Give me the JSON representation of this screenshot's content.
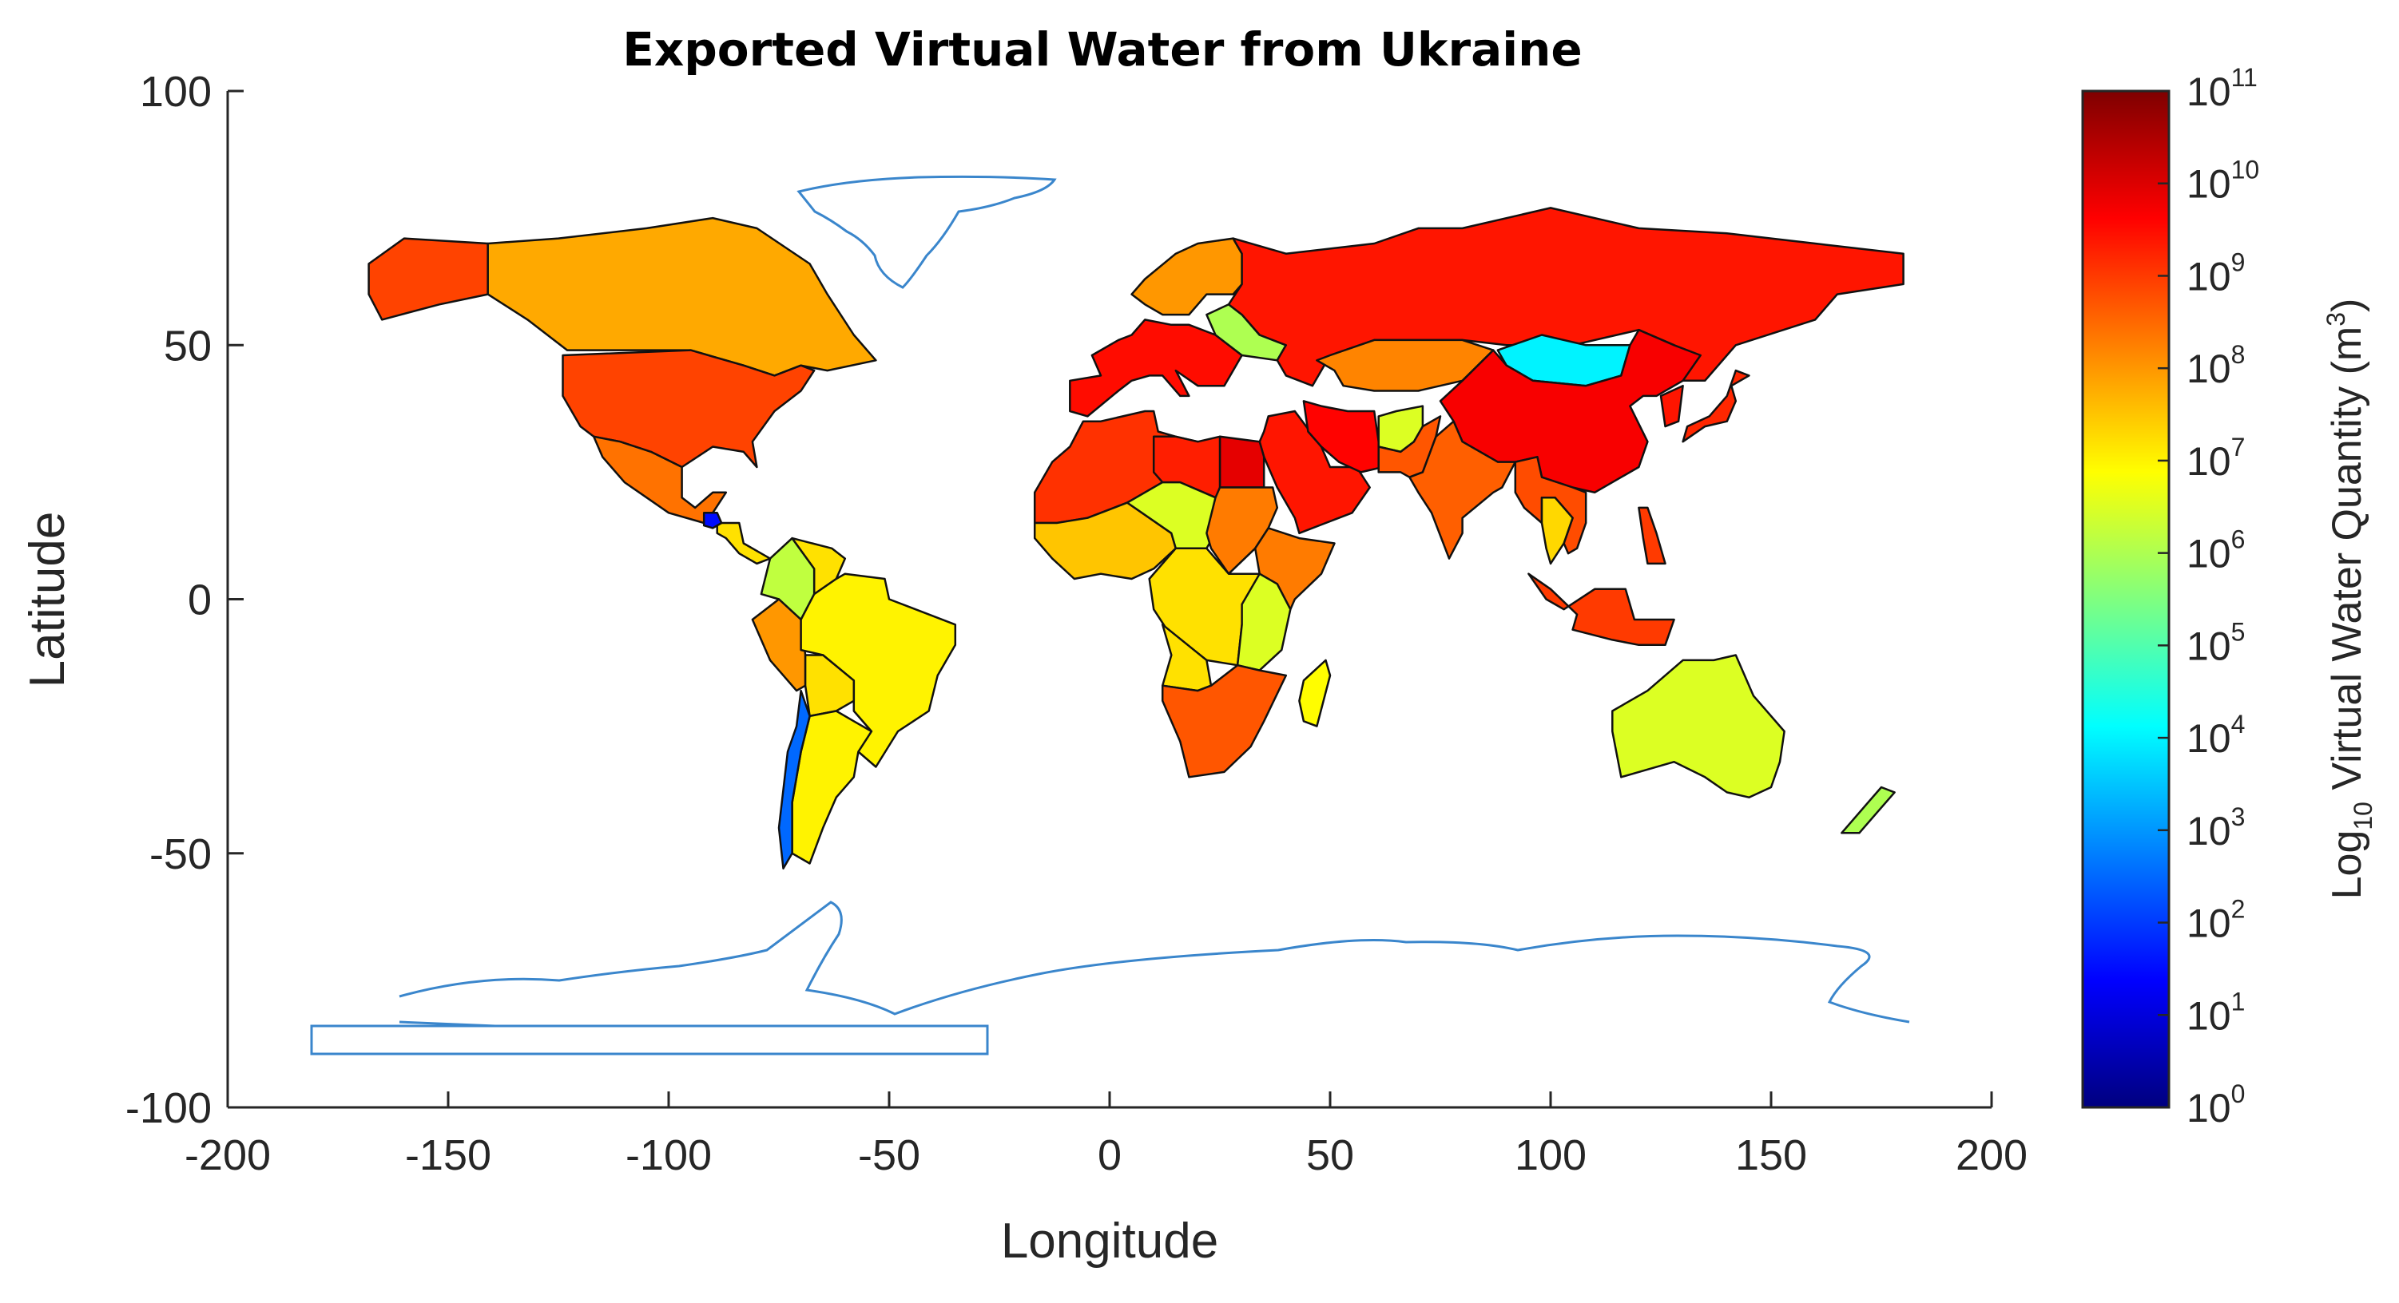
{
  "chart_data": {
    "type": "choropleth",
    "title": "Exported Virtual Water from Ukraine",
    "xlabel": "Longitude",
    "ylabel": "Latitude",
    "xlim": [
      -200,
      200
    ],
    "ylim": [
      -100,
      100
    ],
    "xticks": [
      "-200",
      "-150",
      "-100",
      "-50",
      "0",
      "50",
      "100",
      "150",
      "200"
    ],
    "yticks": [
      "100",
      "50",
      "0",
      "-50",
      "-100"
    ],
    "grid": false,
    "colorbar": {
      "label_prefix": "Log",
      "label_sub": "10",
      "label_mid": " Virtual Water Quantity (m",
      "label_sup": "3",
      "label_end": ")",
      "colormap": "jet",
      "scale": "log",
      "range_exponent": [
        0,
        11
      ],
      "ticks": [
        {
          "base": "10",
          "exp": "11"
        },
        {
          "base": "10",
          "exp": "10"
        },
        {
          "base": "10",
          "exp": "9"
        },
        {
          "base": "10",
          "exp": "8"
        },
        {
          "base": "10",
          "exp": "7"
        },
        {
          "base": "10",
          "exp": "6"
        },
        {
          "base": "10",
          "exp": "5"
        },
        {
          "base": "10",
          "exp": "4"
        },
        {
          "base": "10",
          "exp": "3"
        },
        {
          "base": "10",
          "exp": "2"
        },
        {
          "base": "10",
          "exp": "1"
        },
        {
          "base": "10",
          "exp": "0"
        }
      ]
    },
    "regions": [
      {
        "name": "Alaska",
        "log10": 8.9
      },
      {
        "name": "Canada",
        "log10": 7.8
      },
      {
        "name": "United States",
        "log10": 8.9
      },
      {
        "name": "Mexico",
        "log10": 8.4
      },
      {
        "name": "Central America",
        "log10": 7.2
      },
      {
        "name": "Guatemala",
        "log10": 1.5
      },
      {
        "name": "Colombia",
        "log10": 6.2
      },
      {
        "name": "Venezuela",
        "log10": 7.2
      },
      {
        "name": "Peru",
        "log10": 8.0
      },
      {
        "name": "Brazil",
        "log10": 7.0
      },
      {
        "name": "Bolivia",
        "log10": 7.2
      },
      {
        "name": "Argentina",
        "log10": 7.0
      },
      {
        "name": "Chile",
        "log10": 2.5
      },
      {
        "name": "Scandinavia",
        "log10": 8.0
      },
      {
        "name": "Western Europe",
        "log10": 9.5
      },
      {
        "name": "Eastern Europe",
        "log10": 6.0
      },
      {
        "name": "Russia",
        "log10": 9.4
      },
      {
        "name": "Kazakhstan",
        "log10": 8.2
      },
      {
        "name": "Mongolia",
        "log10": 4.0
      },
      {
        "name": "China",
        "log10": 9.7
      },
      {
        "name": "Japan",
        "log10": 9.2
      },
      {
        "name": "Korea",
        "log10": 9.4
      },
      {
        "name": "Middle East",
        "log10": 9.4
      },
      {
        "name": "Iran",
        "log10": 9.6
      },
      {
        "name": "Afghanistan",
        "log10": 6.5
      },
      {
        "name": "Pakistan",
        "log10": 8.7
      },
      {
        "name": "India",
        "log10": 8.6
      },
      {
        "name": "Southeast Asia",
        "log10": 8.8
      },
      {
        "name": "Thailand",
        "log10": 7.3
      },
      {
        "name": "Indonesia",
        "log10": 9.0
      },
      {
        "name": "Philippines",
        "log10": 9.0
      },
      {
        "name": "North Africa",
        "log10": 9.1
      },
      {
        "name": "Egypt",
        "log10": 9.9
      },
      {
        "name": "Libya",
        "log10": 9.3
      },
      {
        "name": "West Africa",
        "log10": 7.5
      },
      {
        "name": "Sahel",
        "log10": 6.5
      },
      {
        "name": "Sudan",
        "log10": 8.3
      },
      {
        "name": "Ethiopia",
        "log10": 8.3
      },
      {
        "name": "Central Africa",
        "log10": 7.2
      },
      {
        "name": "East Africa",
        "log10": 6.5
      },
      {
        "name": "Angola",
        "log10": 7.2
      },
      {
        "name": "Southern Africa",
        "log10": 8.7
      },
      {
        "name": "Madagascar",
        "log10": 6.9
      },
      {
        "name": "Australia",
        "log10": 6.5
      },
      {
        "name": "New Zealand",
        "log10": 6.0
      }
    ]
  }
}
